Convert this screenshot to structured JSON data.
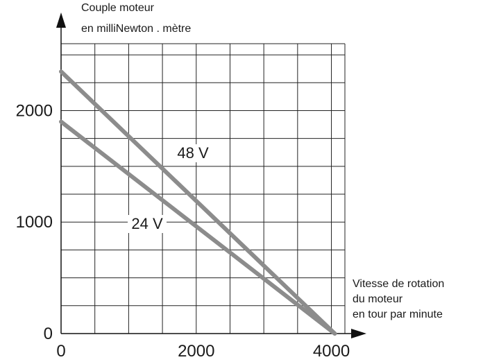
{
  "chart_data": {
    "type": "line",
    "y_axis_title": [
      "Couple moteur",
      "en milliNewton . mètre"
    ],
    "x_axis_title": [
      "Vitesse de rotation",
      "du moteur",
      "en tour par minute"
    ],
    "x_ticks": [
      "0",
      "2000",
      "4000"
    ],
    "y_ticks": [
      "0",
      "1000",
      "2000"
    ],
    "xlim": [
      0,
      4200
    ],
    "ylim": [
      0,
      2600
    ],
    "grid": true,
    "series": [
      {
        "name": "48 V",
        "x": [
          0,
          4050
        ],
        "y": [
          2350,
          0
        ]
      },
      {
        "name": "24 V",
        "x": [
          0,
          4050
        ],
        "y": [
          1900,
          0
        ]
      }
    ],
    "line_color": "#8c8c8c"
  }
}
